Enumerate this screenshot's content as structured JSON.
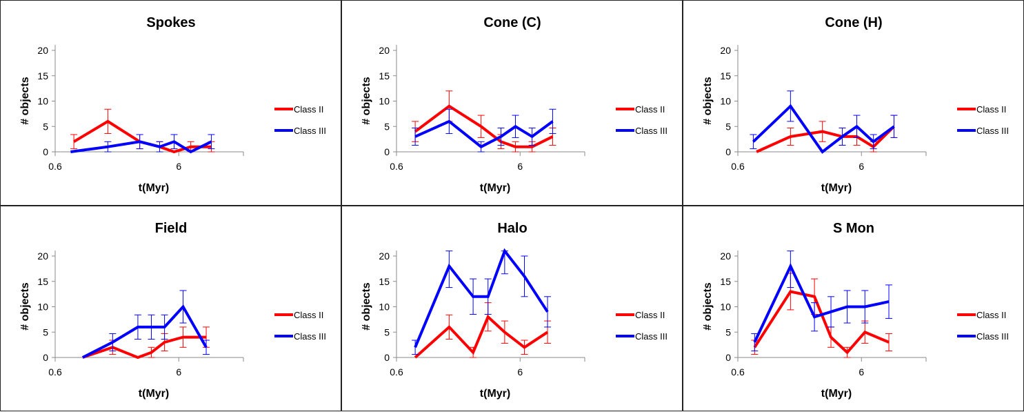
{
  "chart_data": [
    {
      "type": "line",
      "title": "Spokes",
      "xlabel": "t(Myr)",
      "ylabel": "# objects",
      "x_scale": "log",
      "xlim": [
        0.6,
        20
      ],
      "ylim": [
        0,
        20
      ],
      "xticks": [
        "0.6",
        "6"
      ],
      "yticks": [
        "0",
        "5",
        "10",
        "15",
        "20"
      ],
      "series": [
        {
          "name": "Class II",
          "color": "#ff0000",
          "x": [
            0.85,
            1.6,
            2.9,
            4.2,
            5.5,
            7.5,
            11
          ],
          "y": [
            2,
            6,
            2,
            1,
            0,
            1,
            1
          ],
          "err": [
            1.4,
            2.4,
            1.4,
            1,
            0,
            1,
            1
          ]
        },
        {
          "name": "Class III",
          "color": "#0000ff",
          "x": [
            0.8,
            1.6,
            2.9,
            4.2,
            5.5,
            7.5,
            11
          ],
          "y": [
            0,
            1,
            2,
            1,
            2,
            0,
            2
          ],
          "err": [
            0,
            1,
            1.4,
            1,
            1.4,
            0,
            1.4
          ]
        }
      ]
    },
    {
      "type": "line",
      "title": "Cone (C)",
      "xlabel": "t(Myr)",
      "ylabel": "# objects",
      "x_scale": "log",
      "xlim": [
        0.6,
        20
      ],
      "ylim": [
        0,
        20
      ],
      "xticks": [
        "0.6",
        "6"
      ],
      "yticks": [
        "0",
        "5",
        "10",
        "15",
        "20"
      ],
      "series": [
        {
          "name": "Class II",
          "color": "#ff0000",
          "x": [
            0.85,
            1.6,
            2.9,
            4.2,
            5.5,
            7.5,
            11
          ],
          "y": [
            4,
            9,
            5,
            2,
            1,
            1,
            3
          ],
          "err": [
            2,
            3,
            2.2,
            1.4,
            1,
            1,
            1.7
          ]
        },
        {
          "name": "Class III",
          "color": "#0000ff",
          "x": [
            0.85,
            1.6,
            2.9,
            4.2,
            5.5,
            7.5,
            11
          ],
          "y": [
            3,
            6,
            1,
            3,
            5,
            3,
            6
          ],
          "err": [
            1.7,
            2.4,
            1,
            1.7,
            2.2,
            1.7,
            2.4
          ]
        }
      ]
    },
    {
      "type": "line",
      "title": "Cone (H)",
      "xlabel": "t(Myr)",
      "ylabel": "# objects",
      "x_scale": "log",
      "xlim": [
        0.6,
        20
      ],
      "ylim": [
        0,
        20
      ],
      "xticks": [
        "0.6",
        "6"
      ],
      "yticks": [
        "0",
        "5",
        "10",
        "15",
        "20"
      ],
      "series": [
        {
          "name": "Class II",
          "color": "#ff0000",
          "x": [
            0.85,
            1.6,
            2.9,
            4.2,
            5.5,
            7.5,
            11
          ],
          "y": [
            0,
            3,
            4,
            3,
            3,
            1,
            5
          ],
          "err": [
            0,
            1.7,
            2,
            1.7,
            1.7,
            1,
            2.2
          ]
        },
        {
          "name": "Class III",
          "color": "#0000ff",
          "x": [
            0.8,
            1.6,
            2.9,
            4.2,
            5.5,
            7.5,
            11
          ],
          "y": [
            2,
            9,
            0,
            3,
            5,
            2,
            5
          ],
          "err": [
            1.4,
            3,
            0,
            1.7,
            2.2,
            1.4,
            2.2
          ]
        }
      ]
    },
    {
      "type": "line",
      "title": "Field",
      "xlabel": "t(Myr)",
      "ylabel": "# objects",
      "x_scale": "log",
      "xlim": [
        0.6,
        20
      ],
      "ylim": [
        0,
        20
      ],
      "xticks": [
        "0.6",
        "6"
      ],
      "yticks": [
        "0",
        "5",
        "10",
        "15",
        "20"
      ],
      "series": [
        {
          "name": "Class II",
          "color": "#ff0000",
          "x": [
            1.0,
            1.75,
            2.8,
            3.6,
            4.6,
            6.5,
            10
          ],
          "y": [
            0,
            2,
            0,
            1,
            3,
            4,
            4
          ],
          "err": [
            0,
            1.4,
            0,
            1,
            1.7,
            2,
            2
          ]
        },
        {
          "name": "Class III",
          "color": "#0000ff",
          "x": [
            1.0,
            1.75,
            2.8,
            3.6,
            4.6,
            6.5,
            10
          ],
          "y": [
            0,
            3,
            6,
            6,
            6,
            10,
            2
          ],
          "err": [
            0,
            1.7,
            2.4,
            2.4,
            2.4,
            3.2,
            1.4
          ]
        }
      ]
    },
    {
      "type": "line",
      "title": "Halo",
      "xlabel": "t(Myr)",
      "ylabel": "# objects",
      "x_scale": "log",
      "xlim": [
        0.6,
        20
      ],
      "ylim": [
        0,
        20
      ],
      "xticks": [
        "0.6",
        "6"
      ],
      "yticks": [
        "0",
        "5",
        "10",
        "15",
        "20"
      ],
      "series": [
        {
          "name": "Class II",
          "color": "#ff0000",
          "x": [
            0.85,
            1.6,
            2.5,
            3.3,
            4.5,
            6.5,
            10
          ],
          "y": [
            0,
            6,
            1,
            8,
            5,
            2,
            5
          ],
          "err": [
            0,
            2.4,
            1,
            2.8,
            2.2,
            1.4,
            2.2
          ]
        },
        {
          "name": "Class III",
          "color": "#0000ff",
          "x": [
            0.85,
            1.6,
            2.5,
            3.3,
            4.5,
            6.5,
            10
          ],
          "y": [
            2,
            18,
            12,
            12,
            21,
            16,
            9
          ],
          "err": [
            1.4,
            4.2,
            3.5,
            3.5,
            4.5,
            4,
            3
          ]
        }
      ]
    },
    {
      "type": "line",
      "title": "S Mon",
      "xlabel": "t(Myr)",
      "ylabel": "# objects",
      "x_scale": "log",
      "xlim": [
        0.6,
        20
      ],
      "ylim": [
        0,
        20
      ],
      "xticks": [
        "0.6",
        "6"
      ],
      "yticks": [
        "0",
        "5",
        "10",
        "15",
        "20"
      ],
      "series": [
        {
          "name": "Class II",
          "color": "#ff0000",
          "x": [
            0.82,
            1.6,
            2.5,
            3.4,
            4.6,
            6.4,
            10
          ],
          "y": [
            2,
            13,
            12,
            4,
            1,
            5,
            3
          ],
          "err": [
            1.4,
            3.6,
            3.5,
            2,
            1,
            2.2,
            1.7
          ]
        },
        {
          "name": "Class III",
          "color": "#0000ff",
          "x": [
            0.82,
            1.6,
            2.5,
            3.4,
            4.6,
            6.4,
            10
          ],
          "y": [
            3,
            18,
            8,
            9,
            10,
            10,
            11
          ],
          "err": [
            1.7,
            4.2,
            2.8,
            3,
            3.2,
            3.2,
            3.3
          ]
        }
      ]
    }
  ]
}
